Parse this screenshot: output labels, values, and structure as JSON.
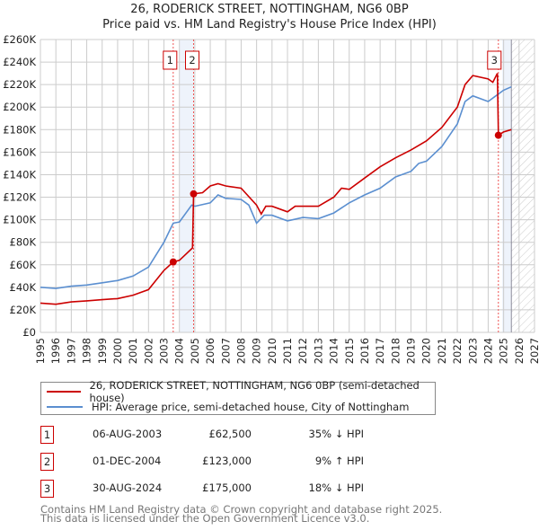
{
  "chart_data": {
    "type": "line",
    "title": "26, RODERICK STREET, NOTTINGHAM, NG6 0BP",
    "subtitle": "Price paid vs. HM Land Registry's House Price Index (HPI)",
    "xlim": [
      1995,
      2027
    ],
    "ylim": [
      0,
      260000
    ],
    "x_ticks": [
      "1995",
      "1996",
      "1997",
      "1998",
      "1999",
      "2000",
      "2001",
      "2002",
      "2003",
      "2004",
      "2005",
      "2006",
      "2007",
      "2008",
      "2009",
      "2010",
      "2011",
      "2012",
      "2013",
      "2014",
      "2015",
      "2016",
      "2017",
      "2018",
      "2019",
      "2020",
      "2021",
      "2022",
      "2023",
      "2024",
      "2025",
      "2026",
      "2027"
    ],
    "y_ticks": [
      {
        "v": 0,
        "label": "£0"
      },
      {
        "v": 20000,
        "label": "£20K"
      },
      {
        "v": 40000,
        "label": "£40K"
      },
      {
        "v": 60000,
        "label": "£60K"
      },
      {
        "v": 80000,
        "label": "£80K"
      },
      {
        "v": 100000,
        "label": "£100K"
      },
      {
        "v": 120000,
        "label": "£120K"
      },
      {
        "v": 140000,
        "label": "£140K"
      },
      {
        "v": 160000,
        "label": "£160K"
      },
      {
        "v": 180000,
        "label": "£180K"
      },
      {
        "v": 200000,
        "label": "£200K"
      },
      {
        "v": 220000,
        "label": "£220K"
      },
      {
        "v": 240000,
        "label": "£240K"
      },
      {
        "v": 260000,
        "label": "£260K"
      }
    ],
    "grid": true,
    "series": [
      {
        "name": "26, RODERICK STREET, NOTTINGHAM, NG6 0BP (semi-detached house)",
        "color": "#cc0000",
        "x": [
          1995,
          1996,
          1997,
          1998,
          1999,
          2000,
          2001,
          2002,
          2003,
          2003.6,
          2004,
          2004.85,
          2004.92,
          2005.5,
          2006,
          2006.5,
          2007,
          2008,
          2009,
          2009.3,
          2009.6,
          2010,
          2011,
          2011.5,
          2012,
          2013,
          2014,
          2014.5,
          2015,
          2016,
          2017,
          2018,
          2019,
          2020,
          2021,
          2022,
          2022.5,
          2023,
          2024,
          2024.3,
          2024.6,
          2024.66,
          2025,
          2025.5
        ],
        "y": [
          26000,
          25000,
          27000,
          28000,
          29000,
          30000,
          33000,
          38000,
          55000,
          62500,
          64000,
          75000,
          123000,
          124000,
          130000,
          132000,
          130000,
          128000,
          113000,
          105000,
          112000,
          112000,
          107000,
          112000,
          112000,
          112000,
          120000,
          128000,
          127000,
          137000,
          147000,
          155000,
          162000,
          170000,
          182000,
          200000,
          220000,
          228000,
          225000,
          222000,
          230000,
          175000,
          178000,
          180000
        ]
      },
      {
        "name": "HPI: Average price, semi-detached house, City of Nottingham",
        "color": "#5b8fd0",
        "x": [
          1995,
          1996,
          1997,
          1998,
          1999,
          2000,
          2001,
          2002,
          2003,
          2003.6,
          2004,
          2004.8,
          2005,
          2006,
          2006.5,
          2007,
          2008,
          2008.5,
          2009,
          2009.5,
          2010,
          2011,
          2012,
          2013,
          2014,
          2015,
          2016,
          2017,
          2018,
          2019,
          2019.5,
          2020,
          2021,
          2022,
          2022.5,
          2023,
          2024,
          2024.5,
          2025,
          2025.5
        ],
        "y": [
          40000,
          39000,
          41000,
          42000,
          44000,
          46000,
          50000,
          58000,
          80000,
          97000,
          98000,
          113000,
          112000,
          115000,
          122000,
          119000,
          118000,
          113000,
          97000,
          104000,
          104000,
          99000,
          102000,
          101000,
          106000,
          115000,
          122000,
          128000,
          138000,
          143000,
          150000,
          152000,
          165000,
          185000,
          205000,
          210000,
          205000,
          210000,
          215000,
          218000
        ]
      }
    ],
    "sales": [
      {
        "id": "1",
        "x": 2003.6,
        "y": 62500
      },
      {
        "id": "2",
        "x": 2004.92,
        "y": 123000
      },
      {
        "id": "3",
        "x": 2024.66,
        "y": 175000
      }
    ],
    "shaded_ranges": [
      [
        2004.0,
        2004.92
      ],
      [
        2024.9,
        2025.45
      ]
    ],
    "forecast_hatch_from": 2025.5
  },
  "legend": {
    "property": "26, RODERICK STREET, NOTTINGHAM, NG6 0BP (semi-detached house)",
    "hpi": "HPI: Average price, semi-detached house, City of Nottingham"
  },
  "transactions": [
    {
      "id": "1",
      "date": "06-AUG-2003",
      "price": "£62,500",
      "hpi": "35% ↓ HPI"
    },
    {
      "id": "2",
      "date": "01-DEC-2004",
      "price": "£123,000",
      "hpi": "9% ↑ HPI"
    },
    {
      "id": "3",
      "date": "30-AUG-2024",
      "price": "£175,000",
      "hpi": "18% ↓ HPI"
    }
  ],
  "footer": {
    "line1": "Contains HM Land Registry data © Crown copyright and database right 2025.",
    "line2": "This data is licensed under the Open Government Licence v3.0."
  }
}
